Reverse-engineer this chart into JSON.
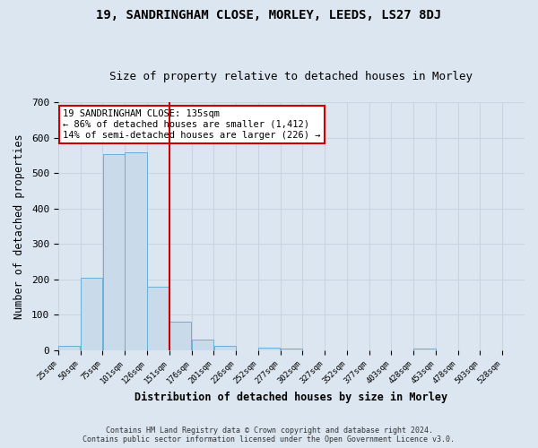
{
  "title": "19, SANDRINGHAM CLOSE, MORLEY, LEEDS, LS27 8DJ",
  "subtitle": "Size of property relative to detached houses in Morley",
  "xlabel": "Distribution of detached houses by size in Morley",
  "ylabel": "Number of detached properties",
  "bar_color": "#c9daea",
  "bar_edge_color": "#6aafd6",
  "grid_color": "#c8d4e0",
  "background_color": "#dce6f0",
  "counts": [
    14,
    206,
    554,
    558,
    180,
    80,
    30,
    12,
    0,
    8,
    6,
    0,
    0,
    0,
    0,
    0,
    5,
    0,
    0,
    0,
    0
  ],
  "bin_labels": [
    "25sqm",
    "50sqm",
    "75sqm",
    "101sqm",
    "126sqm",
    "151sqm",
    "176sqm",
    "201sqm",
    "226sqm",
    "252sqm",
    "277sqm",
    "302sqm",
    "327sqm",
    "352sqm",
    "377sqm",
    "403sqm",
    "428sqm",
    "453sqm",
    "478sqm",
    "503sqm",
    "528sqm"
  ],
  "property_size_bin": 4,
  "vline_color": "#cc0000",
  "annotation_line1": "19 SANDRINGHAM CLOSE: 135sqm",
  "annotation_line2": "← 86% of detached houses are smaller (1,412)",
  "annotation_line3": "14% of semi-detached houses are larger (226) →",
  "annotation_box_color": "#ffffff",
  "annotation_box_edge_color": "#cc0000",
  "ylim": [
    0,
    700
  ],
  "yticks": [
    0,
    100,
    200,
    300,
    400,
    500,
    600,
    700
  ],
  "footer_line1": "Contains HM Land Registry data © Crown copyright and database right 2024.",
  "footer_line2": "Contains public sector information licensed under the Open Government Licence v3.0."
}
